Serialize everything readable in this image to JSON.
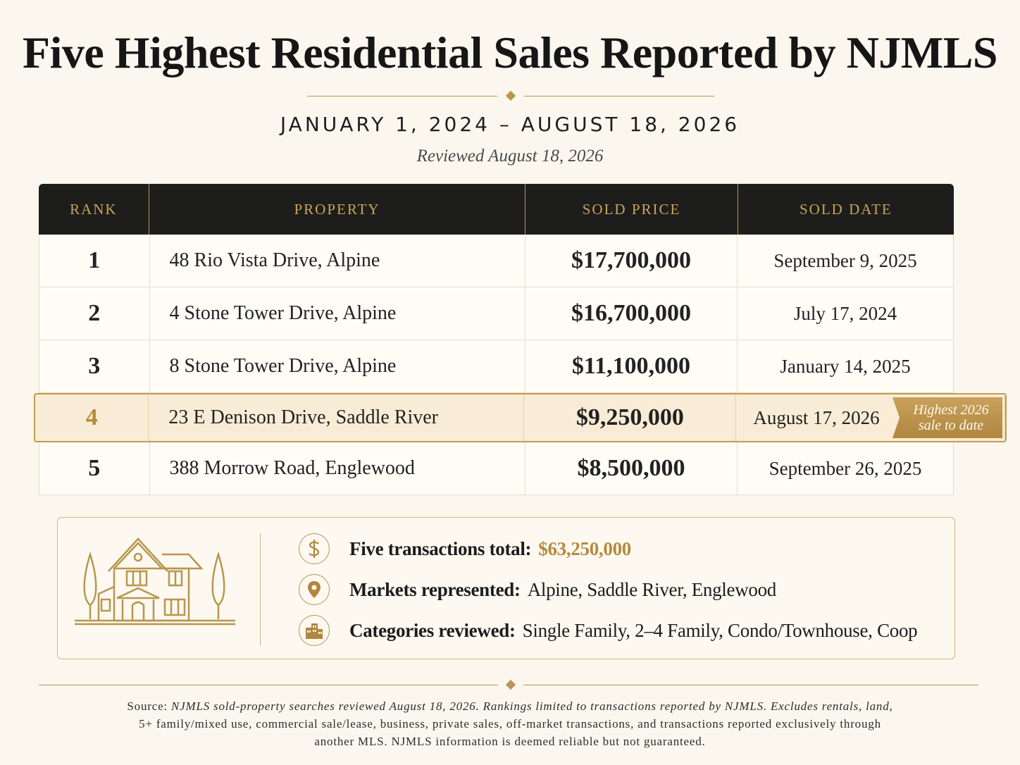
{
  "title": "Five Highest Residential Sales Reported by NJMLS",
  "date_range": "JANUARY 1, 2024 – AUGUST 18, 2026",
  "reviewed": "Reviewed August 18, 2026",
  "table": {
    "headers": [
      "RANK",
      "PROPERTY",
      "SOLD PRICE",
      "SOLD DATE"
    ],
    "rows": [
      {
        "rank": "1",
        "property": "48 Rio Vista Drive, Alpine",
        "price": "$17,700,000",
        "date": "September 9, 2025"
      },
      {
        "rank": "2",
        "property": "4 Stone Tower Drive, Alpine",
        "price": "$16,700,000",
        "date": "July 17, 2024"
      },
      {
        "rank": "3",
        "property": "8 Stone Tower Drive, Alpine",
        "price": "$11,100,000",
        "date": "January 14, 2025"
      },
      {
        "rank": "4",
        "property": "23 E Denison Drive, Saddle River",
        "price": "$9,250,000",
        "date": "August 17, 2026",
        "badge_line1": "Highest 2026",
        "badge_line2": "sale to date"
      },
      {
        "rank": "5",
        "property": "388 Morrow Road, Englewood",
        "price": "$8,500,000",
        "date": "September 26, 2025"
      }
    ]
  },
  "summary": {
    "total_label": "Five transactions total:",
    "total_value": "$63,250,000",
    "markets_label": "Markets represented:",
    "markets_value": "Alpine, Saddle River, Englewood",
    "categories_label": "Categories reviewed:",
    "categories_value": "Single Family, 2–4 Family, Condo/Townhouse, Coop"
  },
  "footer": {
    "source_label": "Source:",
    "line1_rest": "NJMLS sold-property searches reviewed August 18, 2026. Rankings limited to transactions reported by NJMLS. Excludes rentals, land,",
    "line2": "5+ family/mixed use, commercial sale/lease, business, private sales, off-market transactions, and transactions reported exclusively through",
    "line3": "another MLS. NJMLS information is deemed reliable but not guaranteed."
  },
  "icons": [
    "house-illustration-icon",
    "dollar-icon",
    "location-pin-icon",
    "buildings-icon"
  ],
  "colors": {
    "accent": "#b8964f",
    "header_bg": "#1d1d1b",
    "highlight_bg": "#f8ecd6",
    "page_bg": "#fbf7ef"
  }
}
